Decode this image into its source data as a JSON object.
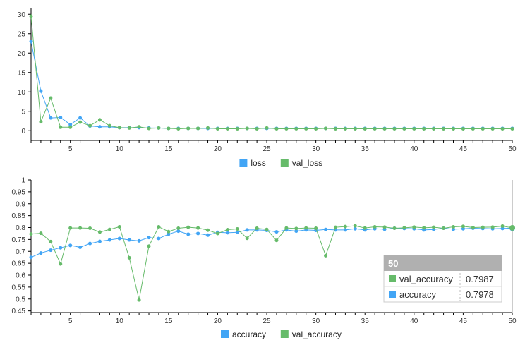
{
  "colors": {
    "series_blue": "#42a5f5",
    "series_green": "#66bb6a",
    "axis": "#000000",
    "tooltip_header": "#b0b0b0"
  },
  "chart_data": [
    {
      "type": "line",
      "x": [
        1,
        2,
        3,
        4,
        5,
        6,
        7,
        8,
        9,
        10,
        11,
        12,
        13,
        14,
        15,
        16,
        17,
        18,
        19,
        20,
        21,
        22,
        23,
        24,
        25,
        26,
        27,
        28,
        29,
        30,
        31,
        32,
        33,
        34,
        35,
        36,
        37,
        38,
        39,
        40,
        41,
        42,
        43,
        44,
        45,
        46,
        47,
        48,
        49,
        50
      ],
      "series": [
        {
          "name": "loss",
          "color": "#42a5f5",
          "values": [
            23.0,
            10.2,
            3.3,
            3.4,
            1.6,
            3.3,
            1.2,
            1.0,
            1.0,
            0.8,
            0.8,
            0.8,
            0.7,
            0.7,
            0.6,
            0.6,
            0.6,
            0.6,
            0.6,
            0.6,
            0.6,
            0.6,
            0.6,
            0.6,
            0.6,
            0.6,
            0.6,
            0.6,
            0.6,
            0.6,
            0.6,
            0.6,
            0.6,
            0.6,
            0.6,
            0.6,
            0.6,
            0.6,
            0.6,
            0.6,
            0.6,
            0.6,
            0.6,
            0.6,
            0.6,
            0.6,
            0.6,
            0.6,
            0.6,
            0.6
          ]
        },
        {
          "name": "val_loss",
          "color": "#66bb6a",
          "values": [
            29.5,
            2.3,
            8.4,
            0.9,
            0.9,
            2.2,
            1.3,
            2.8,
            1.3,
            0.8,
            0.7,
            1.0,
            0.6,
            0.7,
            0.6,
            0.5,
            0.6,
            0.6,
            0.7,
            0.5,
            0.5,
            0.5,
            0.6,
            0.5,
            0.7,
            0.5,
            0.5,
            0.5,
            0.5,
            0.5,
            0.6,
            0.5,
            0.5,
            0.5,
            0.5,
            0.5,
            0.5,
            0.5,
            0.5,
            0.5,
            0.5,
            0.5,
            0.5,
            0.5,
            0.5,
            0.5,
            0.5,
            0.5,
            0.5,
            0.5
          ]
        }
      ],
      "x_ticks": [
        5,
        10,
        15,
        20,
        25,
        30,
        35,
        40,
        45,
        50
      ],
      "y_ticks": [
        0,
        5,
        10,
        15,
        20,
        25,
        30
      ],
      "xlim": [
        1,
        50
      ],
      "ylim": [
        -2.5,
        31.5
      ],
      "legend": [
        "loss",
        "val_loss"
      ],
      "legend_position": "bottom"
    },
    {
      "type": "line",
      "x": [
        1,
        2,
        3,
        4,
        5,
        6,
        7,
        8,
        9,
        10,
        11,
        12,
        13,
        14,
        15,
        16,
        17,
        18,
        19,
        20,
        21,
        22,
        23,
        24,
        25,
        26,
        27,
        28,
        29,
        30,
        31,
        32,
        33,
        34,
        35,
        36,
        37,
        38,
        39,
        40,
        41,
        42,
        43,
        44,
        45,
        46,
        47,
        48,
        49,
        50
      ],
      "series": [
        {
          "name": "accuracy",
          "color": "#42a5f5",
          "values": [
            0.675,
            0.693,
            0.705,
            0.715,
            0.725,
            0.717,
            0.733,
            0.742,
            0.748,
            0.754,
            0.748,
            0.744,
            0.758,
            0.754,
            0.772,
            0.785,
            0.772,
            0.775,
            0.768,
            0.78,
            0.778,
            0.78,
            0.79,
            0.79,
            0.788,
            0.782,
            0.79,
            0.785,
            0.79,
            0.788,
            0.792,
            0.79,
            0.79,
            0.795,
            0.79,
            0.795,
            0.793,
            0.797,
            0.796,
            0.795,
            0.79,
            0.792,
            0.797,
            0.793,
            0.795,
            0.797,
            0.796,
            0.795,
            0.796,
            0.7978
          ]
        },
        {
          "name": "val_accuracy",
          "color": "#66bb6a",
          "values": [
            0.773,
            0.776,
            0.741,
            0.647,
            0.798,
            0.798,
            0.797,
            0.781,
            0.792,
            0.803,
            0.673,
            0.496,
            0.722,
            0.803,
            0.783,
            0.797,
            0.801,
            0.798,
            0.789,
            0.775,
            0.791,
            0.794,
            0.755,
            0.797,
            0.792,
            0.746,
            0.798,
            0.796,
            0.798,
            0.797,
            0.682,
            0.801,
            0.804,
            0.807,
            0.798,
            0.803,
            0.802,
            0.797,
            0.799,
            0.802,
            0.799,
            0.801,
            0.797,
            0.803,
            0.805,
            0.8,
            0.801,
            0.802,
            0.806,
            0.7987
          ]
        }
      ],
      "x_ticks": [
        5,
        10,
        15,
        20,
        25,
        30,
        35,
        40,
        45,
        50
      ],
      "y_ticks": [
        0.45,
        0.5,
        0.55,
        0.6,
        0.65,
        0.7,
        0.75,
        0.8,
        0.85,
        0.9,
        0.95,
        1
      ],
      "y_tick_labels": [
        "0.45",
        "0.5",
        "0.55",
        "0.6",
        "0.65",
        "0.7",
        "0.75",
        "0.8",
        "0.85",
        "0.9",
        "0.95",
        "1"
      ],
      "xlim": [
        1,
        50
      ],
      "ylim": [
        0.443,
        1
      ],
      "legend": [
        "accuracy",
        "val_accuracy"
      ],
      "legend_position": "bottom"
    }
  ],
  "tooltip": {
    "title": "50",
    "rows": [
      {
        "label": "val_accuracy",
        "value": "0.7987",
        "color": "#66bb6a"
      },
      {
        "label": "accuracy",
        "value": "0.7978",
        "color": "#42a5f5"
      }
    ]
  }
}
